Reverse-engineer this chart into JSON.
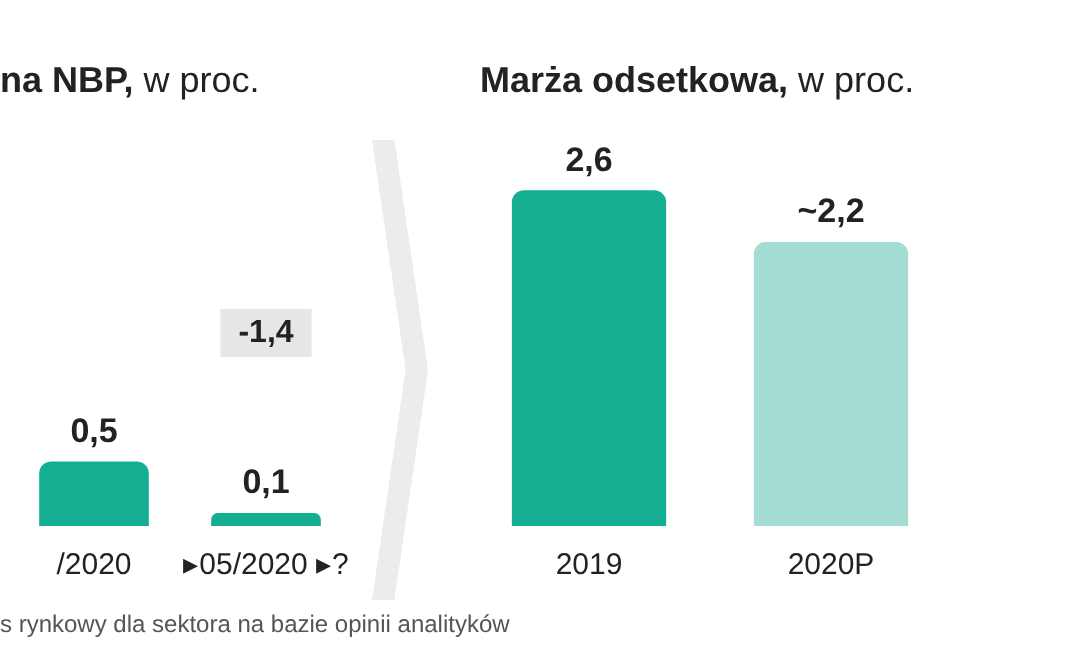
{
  "chart_data": [
    {
      "type": "bar",
      "title": "na NBP, w proc.",
      "categories": [
        "/2020",
        "▸05/2020 ▸?"
      ],
      "values": [
        0.5,
        0.1
      ],
      "colors": [
        "#14ae93",
        "#14ae93"
      ],
      "value_labels": [
        "0,5",
        "0,1"
      ],
      "annotations": [
        "-1,4",
        "s rynkowy dla sektora na bazie opinii analityków"
      ]
    },
    {
      "type": "bar",
      "title": "Marża odsetkowa, w proc.",
      "categories": [
        "2019",
        "2020P"
      ],
      "values": [
        2.6,
        2.2
      ],
      "colors": [
        "#14ae93",
        "#a5ddd4"
      ],
      "value_labels": [
        "2,6",
        "~2,2"
      ]
    }
  ]
}
